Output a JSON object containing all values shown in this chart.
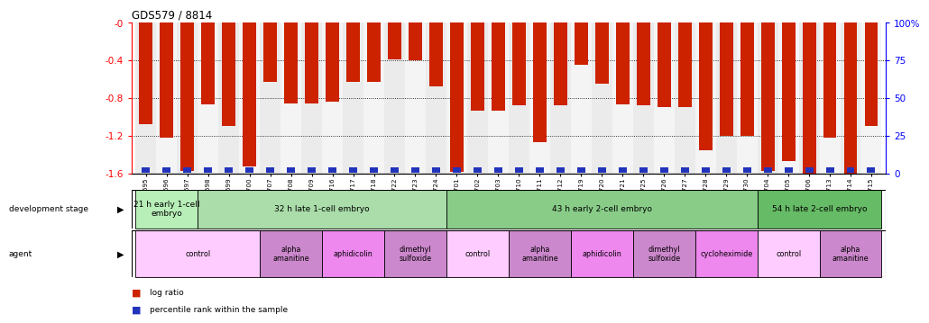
{
  "title": "GDS579 / 8814",
  "gsm_labels": [
    "GSM14695",
    "GSM14696",
    "GSM14697",
    "GSM14698",
    "GSM14699",
    "GSM14700",
    "GSM14707",
    "GSM14708",
    "GSM14709",
    "GSM14716",
    "GSM14717",
    "GSM14718",
    "GSM14722",
    "GSM14723",
    "GSM14724",
    "GSM14701",
    "GSM14702",
    "GSM14703",
    "GSM14710",
    "GSM14711",
    "GSM14712",
    "GSM14719",
    "GSM14720",
    "GSM14721",
    "GSM14725",
    "GSM14726",
    "GSM14727",
    "GSM14728",
    "GSM14729",
    "GSM14730",
    "GSM14704",
    "GSM14705",
    "GSM14706",
    "GSM14713",
    "GSM14714",
    "GSM14715"
  ],
  "log_ratio": [
    -1.08,
    -1.22,
    -1.57,
    -0.87,
    -1.1,
    -1.53,
    -0.63,
    -0.86,
    -0.86,
    -0.84,
    -0.63,
    -0.63,
    -0.39,
    -0.4,
    -0.68,
    -1.58,
    -0.93,
    -0.93,
    -0.88,
    -1.27,
    -0.88,
    -0.45,
    -0.65,
    -0.87,
    -0.88,
    -0.9,
    -0.9,
    -1.35,
    -1.2,
    -1.2,
    -1.57,
    -1.47,
    -1.6,
    -1.22,
    -1.6,
    -1.1
  ],
  "percentile_pct": [
    2,
    7,
    8,
    8,
    8,
    2,
    12,
    8,
    8,
    12,
    8,
    12,
    8,
    8,
    8,
    2,
    8,
    8,
    8,
    8,
    12,
    8,
    8,
    8,
    8,
    8,
    8,
    2,
    8,
    2,
    2,
    2,
    2,
    2,
    2,
    8
  ],
  "bar_color": "#cc2200",
  "blue_color": "#2233bb",
  "ylim": [
    -1.6,
    0.0
  ],
  "yticks_left": [
    0.0,
    -0.4,
    -0.8,
    -1.2,
    -1.6
  ],
  "ytick_labels_left": [
    "-0",
    "-0.4",
    "-0.8",
    "-1.2",
    "-1.6"
  ],
  "ytick_labels_right": [
    "100%",
    "75",
    "50",
    "25",
    "0"
  ],
  "hgrid_vals": [
    -0.4,
    -0.8,
    -1.2
  ],
  "dev_stage_groups": [
    {
      "label": "21 h early 1-cell\nembryo",
      "start": 0,
      "end": 3,
      "color": "#b8eeb8"
    },
    {
      "label": "32 h late 1-cell embryo",
      "start": 3,
      "end": 15,
      "color": "#aaddaa"
    },
    {
      "label": "43 h early 2-cell embryo",
      "start": 15,
      "end": 30,
      "color": "#88cc88"
    },
    {
      "label": "54 h late 2-cell embryo",
      "start": 30,
      "end": 36,
      "color": "#66bb66"
    }
  ],
  "agent_groups": [
    {
      "label": "control",
      "start": 0,
      "end": 6,
      "color": "#ffccff"
    },
    {
      "label": "alpha\namanitine",
      "start": 6,
      "end": 9,
      "color": "#cc88cc"
    },
    {
      "label": "aphidicolin",
      "start": 9,
      "end": 12,
      "color": "#ee88ee"
    },
    {
      "label": "dimethyl\nsulfoxide",
      "start": 12,
      "end": 15,
      "color": "#cc88cc"
    },
    {
      "label": "control",
      "start": 15,
      "end": 18,
      "color": "#ffccff"
    },
    {
      "label": "alpha\namanitine",
      "start": 18,
      "end": 21,
      "color": "#cc88cc"
    },
    {
      "label": "aphidicolin",
      "start": 21,
      "end": 24,
      "color": "#ee88ee"
    },
    {
      "label": "dimethyl\nsulfoxide",
      "start": 24,
      "end": 27,
      "color": "#cc88cc"
    },
    {
      "label": "cycloheximide",
      "start": 27,
      "end": 30,
      "color": "#ee88ee"
    },
    {
      "label": "control",
      "start": 30,
      "end": 33,
      "color": "#ffccff"
    },
    {
      "label": "alpha\namanitine",
      "start": 33,
      "end": 36,
      "color": "#cc88cc"
    }
  ]
}
